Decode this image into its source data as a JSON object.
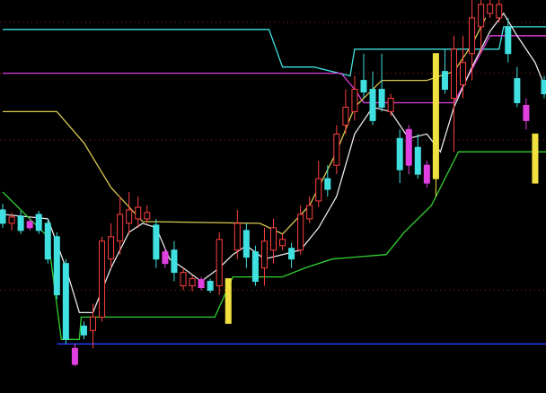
{
  "chart_data": {
    "type": "candlestick",
    "xlim": [
      -0.3,
      60.2
    ],
    "ylim": [
      0,
      440
    ],
    "yticks": [
      115,
      283,
      358,
      415
    ],
    "grid": true,
    "grid_color": "#a02020",
    "up_color": "#ff4040",
    "colors": [
      "#40e0e0",
      "#ff4040",
      "#40e0e0",
      "#e040e0",
      "#40e0e0",
      "#40e0e0",
      "#40e0e0",
      "#40e0e0",
      "#e040e0",
      "#40e0e0",
      "#ff4040",
      "#ff4040",
      "#ff4040",
      "#ff4040",
      "#ff4040",
      "#ff4040",
      "#ff4040",
      "#40e0e0",
      "#e040e0",
      "#40e0e0",
      "#ff4040",
      "#ff4040",
      "#e040e0",
      "#40e0e0",
      "#ff4040",
      "#f0e040",
      "#ff4040",
      "#40e0e0",
      "#40e0e0",
      "#ff4040",
      "#ff4040",
      "#ff4040",
      "#40e0e0",
      "#ff4040",
      "#ff4040",
      "#ff4040",
      "#40e0e0",
      "#ff4040",
      "#ff4040",
      "#ff4040",
      "#40e0e0",
      "#40e0e0",
      "#40e0e0",
      "#ff4040",
      "#40e0e0",
      "#e040e0",
      "#40e0e0",
      "#e040e0",
      "#f0e040",
      "#40e0e0",
      "#ff4040",
      "#ff4040",
      "#ff4040",
      "#ff4040",
      "#ff4040",
      "#ff4040",
      "#40e0e0",
      "#40e0e0",
      "#e040e0",
      "#f0e040",
      "#40e0e0"
    ],
    "open": [
      205,
      190,
      198,
      192,
      200,
      190,
      175,
      145,
      50,
      75,
      70,
      85,
      150,
      170,
      190,
      195,
      195,
      188,
      158,
      160,
      120,
      120,
      127,
      125,
      120,
      128,
      160,
      182,
      158,
      140,
      160,
      165,
      162,
      160,
      195,
      215,
      240,
      255,
      300,
      315,
      350,
      340,
      340,
      315,
      285,
      295,
      275,
      255,
      240,
      360,
      330,
      345,
      380,
      410,
      425,
      420,
      410,
      352,
      322,
      290,
      350
    ],
    "high": [
      212,
      202,
      204,
      195,
      204,
      195,
      180,
      150,
      55,
      80,
      100,
      175,
      190,
      220,
      225,
      220,
      210,
      195,
      162,
      170,
      140,
      132,
      130,
      128,
      180,
      128,
      205,
      190,
      165,
      185,
      195,
      178,
      168,
      210,
      220,
      260,
      255,
      300,
      340,
      355,
      380,
      360,
      380,
      335,
      295,
      300,
      290,
      260,
      380,
      385,
      400,
      400,
      440,
      440,
      440,
      440,
      420,
      365,
      330,
      290,
      355
    ],
    "low": [
      185,
      182,
      178,
      182,
      178,
      145,
      105,
      55,
      30,
      60,
      50,
      80,
      140,
      155,
      178,
      185,
      190,
      140,
      140,
      125,
      115,
      114,
      115,
      112,
      110,
      78,
      150,
      140,
      120,
      120,
      145,
      160,
      140,
      155,
      190,
      208,
      220,
      245,
      290,
      305,
      330,
      300,
      315,
      310,
      235,
      245,
      240,
      230,
      220,
      335,
      270,
      330,
      350,
      380,
      420,
      415,
      370,
      320,
      295,
      235,
      330
    ],
    "close": [
      190,
      197,
      182,
      185,
      182,
      150,
      110,
      60,
      32,
      65,
      85,
      170,
      175,
      200,
      205,
      208,
      202,
      150,
      145,
      135,
      135,
      128,
      118,
      115,
      172,
      78,
      190,
      152,
      125,
      170,
      185,
      172,
      150,
      200,
      210,
      240,
      228,
      290,
      320,
      340,
      337,
      305,
      320,
      330,
      250,
      255,
      245,
      235,
      380,
      340,
      385,
      370,
      420,
      435,
      435,
      435,
      380,
      325,
      305,
      235,
      335
    ],
    "lines": [
      {
        "color": "#40e0e0",
        "x": [
          0,
          29.5,
          31,
          34.5,
          38.5,
          39,
          55,
          55.5,
          60.2
        ],
        "values": [
          407,
          407,
          365,
          365,
          355,
          385,
          385,
          410,
          410
        ]
      },
      {
        "color": "#e040e0",
        "x": [
          0,
          37.5,
          39,
          40,
          47.5,
          50,
          54,
          60.2
        ],
        "values": [
          358,
          358,
          340,
          325,
          325,
          325,
          400,
          400
        ]
      },
      {
        "color": "#d8c850",
        "x": [
          0,
          6,
          9,
          12,
          15.5,
          28.5,
          31,
          34,
          37,
          39,
          42,
          47,
          50,
          52,
          53.5
        ],
        "values": [
          315,
          315,
          280,
          230,
          192,
          190,
          178,
          210,
          270,
          320,
          350,
          350,
          360,
          390,
          420
        ]
      },
      {
        "color": "#e8e8e8",
        "x": [
          0,
          5,
          7,
          8.5,
          10,
          12,
          14,
          15.5,
          17,
          18.5,
          20,
          22,
          24,
          25.5,
          27,
          29,
          31,
          33,
          35,
          37,
          39,
          41,
          43,
          45,
          47,
          48.5,
          50,
          52,
          54,
          55.5,
          57,
          59,
          60.2
        ],
        "values": [
          200,
          195,
          140,
          90,
          90,
          140,
          180,
          190,
          185,
          150,
          140,
          125,
          140,
          155,
          165,
          150,
          155,
          160,
          185,
          220,
          290,
          320,
          315,
          285,
          290,
          270,
          320,
          365,
          405,
          425,
          400,
          370,
          340
        ]
      },
      {
        "color": "#30d030",
        "x": [
          0,
          5,
          6.5,
          8.5,
          8.7,
          23.5,
          25.5,
          31,
          33.5,
          36.5,
          42.5,
          44.5,
          47.5,
          50.5,
          60.2
        ],
        "values": [
          225,
          175,
          60,
          60,
          85,
          85,
          130,
          130,
          140,
          150,
          155,
          180,
          210,
          270,
          270
        ]
      },
      {
        "color": "#2040ff",
        "x": [
          6,
          60.2
        ],
        "values": [
          55,
          55
        ]
      }
    ]
  }
}
